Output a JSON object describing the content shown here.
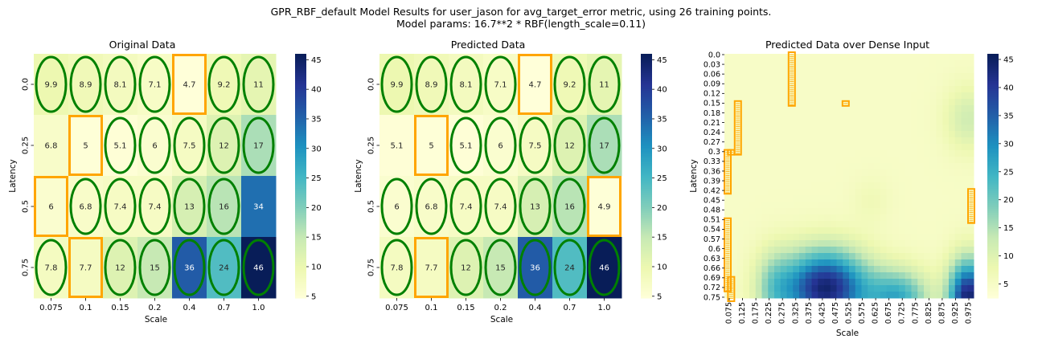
{
  "figure": {
    "suptitle_line1": "GPR_RBF_default Model Results for user_jason for avg_target_error metric, using 26 training points.",
    "suptitle_line2": "Model params: 16.7**2 * RBF(length_scale=0.11)"
  },
  "colormap": {
    "name": "YlGnBu",
    "stops": [
      "#ffffd9",
      "#edf8b1",
      "#c7e9b4",
      "#7fcdbb",
      "#41b6c4",
      "#1d91c0",
      "#225ea8",
      "#253494",
      "#081d58"
    ]
  },
  "markers": {
    "ellipse_color": "#008000",
    "box_color": "#ffa500"
  },
  "chart_data": [
    {
      "type": "heatmap",
      "title": "Original Data",
      "xlabel": "Scale",
      "ylabel": "Latency",
      "x": [
        "0.075",
        "0.1",
        "0.15",
        "0.2",
        "0.4",
        "0.7",
        "1.0"
      ],
      "y": [
        "0.0",
        "0.25",
        "0.5",
        "0.75"
      ],
      "values": [
        [
          9.9,
          8.9,
          8.1,
          7.1,
          4.7,
          9.2,
          11
        ],
        [
          6.8,
          5,
          5.1,
          6,
          7.5,
          12,
          17
        ],
        [
          6,
          6.8,
          7.4,
          7.4,
          13,
          16,
          34
        ],
        [
          7.8,
          7.7,
          12,
          15,
          36,
          24,
          46
        ]
      ],
      "vmin": 4.7,
      "vmax": 46,
      "colorbar_ticks": [
        5,
        10,
        15,
        20,
        25,
        30,
        35,
        40,
        45
      ],
      "ellipses": [
        [
          0,
          0
        ],
        [
          0,
          1
        ],
        [
          0,
          2
        ],
        [
          0,
          3
        ],
        [
          0,
          5
        ],
        [
          0,
          6
        ],
        [
          1,
          2
        ],
        [
          1,
          3
        ],
        [
          1,
          4
        ],
        [
          1,
          5
        ],
        [
          1,
          6
        ],
        [
          2,
          1
        ],
        [
          2,
          2
        ],
        [
          2,
          3
        ],
        [
          2,
          4
        ],
        [
          2,
          5
        ],
        [
          3,
          0
        ],
        [
          3,
          2
        ],
        [
          3,
          3
        ],
        [
          3,
          4
        ],
        [
          3,
          5
        ],
        [
          3,
          6
        ]
      ],
      "boxes": [
        [
          0,
          4
        ],
        [
          1,
          1
        ],
        [
          2,
          0
        ],
        [
          3,
          1
        ]
      ]
    },
    {
      "type": "heatmap",
      "title": "Predicted Data",
      "xlabel": "Scale",
      "ylabel": "Latency",
      "x": [
        "0.075",
        "0.1",
        "0.15",
        "0.2",
        "0.4",
        "0.7",
        "1.0"
      ],
      "y": [
        "0.0",
        "0.25",
        "0.5",
        "0.75"
      ],
      "values": [
        [
          9.9,
          8.9,
          8.1,
          7.1,
          4.7,
          9.2,
          11
        ],
        [
          5.1,
          5,
          5.1,
          6,
          7.5,
          12,
          17
        ],
        [
          6,
          6.8,
          7.4,
          7.4,
          13,
          16,
          4.9
        ],
        [
          7.8,
          7.7,
          12,
          15,
          36,
          24,
          46
        ]
      ],
      "vmin": 4.7,
      "vmax": 46,
      "colorbar_ticks": [
        5,
        10,
        15,
        20,
        25,
        30,
        35,
        40,
        45
      ],
      "ellipses": [
        [
          0,
          0
        ],
        [
          0,
          1
        ],
        [
          0,
          2
        ],
        [
          0,
          3
        ],
        [
          0,
          5
        ],
        [
          0,
          6
        ],
        [
          1,
          2
        ],
        [
          1,
          3
        ],
        [
          1,
          4
        ],
        [
          1,
          5
        ],
        [
          1,
          6
        ],
        [
          2,
          0
        ],
        [
          2,
          1
        ],
        [
          2,
          2
        ],
        [
          2,
          3
        ],
        [
          2,
          4
        ],
        [
          2,
          5
        ],
        [
          3,
          0
        ],
        [
          3,
          2
        ],
        [
          3,
          3
        ],
        [
          3,
          4
        ],
        [
          3,
          5
        ],
        [
          3,
          6
        ]
      ],
      "boxes": [
        [
          0,
          4
        ],
        [
          1,
          1
        ],
        [
          2,
          6
        ],
        [
          3,
          1
        ]
      ]
    },
    {
      "type": "heatmap",
      "title": "Predicted Data over Dense Input",
      "xlabel": "Scale",
      "ylabel": "Latency",
      "x_ticks": [
        "0.075",
        "0.125",
        "0.175",
        "0.225",
        "0.275",
        "0.325",
        "0.375",
        "0.425",
        "0.475",
        "0.525",
        "0.575",
        "0.625",
        "0.675",
        "0.725",
        "0.775",
        "0.825",
        "0.875",
        "0.925",
        "0.975"
      ],
      "y_ticks": [
        "0.0",
        "0.03",
        "0.06",
        "0.09",
        "0.12",
        "0.15",
        "0.18",
        "0.21",
        "0.24",
        "0.27",
        "0.3",
        "0.33",
        "0.36",
        "0.39",
        "0.42",
        "0.45",
        "0.48",
        "0.51",
        "0.54",
        "0.57",
        "0.6",
        "0.63",
        "0.66",
        "0.69",
        "0.72",
        "0.75"
      ],
      "x_range": [
        0.075,
        1.0
      ],
      "y_range": [
        0.0,
        0.75
      ],
      "vmin": 2.5,
      "vmax": 46,
      "colorbar_ticks": [
        5,
        10,
        15,
        20,
        25,
        30,
        35,
        40,
        45
      ],
      "box_segments": [
        {
          "x": 0.325,
          "y_from": 0.0,
          "y_to": 0.15
        },
        {
          "x": 0.525,
          "y_from": 0.15,
          "y_to": 0.15
        },
        {
          "x": 0.125,
          "y_from": 0.15,
          "y_to": 0.3
        },
        {
          "x": 0.1,
          "y_from": 0.3,
          "y_to": 0.3
        },
        {
          "x": 0.075,
          "y_from": 0.3,
          "y_to": 0.42
        },
        {
          "x": 1.0,
          "y_from": 0.42,
          "y_to": 0.51
        },
        {
          "x": 0.075,
          "y_from": 0.51,
          "y_to": 0.72
        },
        {
          "x": 0.1,
          "y_from": 0.69,
          "y_to": 0.75
        }
      ],
      "field_peaks": [
        {
          "x": 0.45,
          "y": 0.72,
          "value": 44,
          "sx": 0.11,
          "sy": 0.08
        },
        {
          "x": 0.98,
          "y": 0.75,
          "value": 44,
          "sx": 0.05,
          "sy": 0.08
        },
        {
          "x": 0.72,
          "y": 0.75,
          "value": 25,
          "sx": 0.08,
          "sy": 0.06
        },
        {
          "x": 0.26,
          "y": 0.72,
          "value": 15,
          "sx": 0.05,
          "sy": 0.08
        },
        {
          "x": 0.98,
          "y": 0.2,
          "value": 12,
          "sx": 0.06,
          "sy": 0.07
        },
        {
          "x": 0.62,
          "y": 0.45,
          "value": 7,
          "sx": 0.05,
          "sy": 0.05
        }
      ],
      "field_base": 5
    }
  ]
}
